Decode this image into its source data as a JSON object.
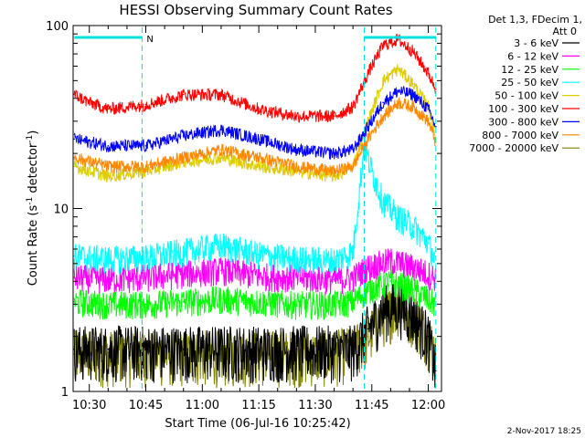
{
  "chart_data": {
    "type": "line",
    "title": "HESSI Observing Summary Count Rates",
    "xlabel": "Start Time (06-Jul-16 10:25:42)",
    "ylabel": "Count Rate (s",
    "ylabel_sup": "-1",
    "ylabel_rest": " detector",
    "ylabel_close": ")",
    "y_scale": "log",
    "ylim": [
      1,
      100
    ],
    "xlim": [
      "10:25:42",
      "12:03:30"
    ],
    "x_ticks": [
      "10:30",
      "10:45",
      "11:00",
      "11:15",
      "11:30",
      "11:45",
      "12:00"
    ],
    "y_ticks": [
      "1",
      "10",
      "100"
    ],
    "legend_title_line1": "Det 1,3, FDecim 1,",
    "legend_title_line2": "Att 0",
    "legend_position": "right",
    "footer_date": "2-Nov-2017 18:25",
    "attenuator_marker": "N",
    "series": [
      {
        "name": "3 - 6 keV",
        "color": "#000000",
        "x": [
          "10:26",
          "10:35",
          "10:45",
          "10:55",
          "11:05",
          "11:15",
          "11:25",
          "11:35",
          "11:40",
          "11:44",
          "11:48",
          "11:52",
          "11:56",
          "12:00",
          "12:02"
        ],
        "y": [
          1.7,
          1.7,
          1.7,
          1.7,
          1.7,
          1.7,
          1.7,
          1.7,
          1.7,
          2.2,
          2.8,
          3.0,
          2.6,
          2.0,
          1.3
        ]
      },
      {
        "name": "6 - 12 keV",
        "color": "#ff00ff",
        "x": [
          "10:26",
          "10:35",
          "10:45",
          "10:55",
          "11:05",
          "11:15",
          "11:25",
          "11:35",
          "11:40",
          "11:44",
          "11:50",
          "11:56",
          "12:02"
        ],
        "y": [
          4.2,
          4.1,
          4.2,
          4.4,
          4.6,
          4.3,
          4.2,
          4.1,
          4.2,
          4.8,
          5.2,
          4.8,
          4.2
        ]
      },
      {
        "name": "12 - 25 keV",
        "color": "#00ff00",
        "x": [
          "10:26",
          "10:35",
          "10:45",
          "10:55",
          "11:05",
          "11:15",
          "11:25",
          "11:35",
          "11:40",
          "11:44",
          "11:50",
          "11:56",
          "12:02"
        ],
        "y": [
          3.1,
          3.0,
          3.0,
          3.1,
          3.2,
          3.1,
          3.0,
          3.0,
          3.1,
          3.6,
          4.0,
          3.6,
          3.0
        ]
      },
      {
        "name": "25 - 50 keV",
        "color": "#00ffff",
        "x": [
          "10:26",
          "10:35",
          "10:45",
          "10:55",
          "11:05",
          "11:15",
          "11:25",
          "11:35",
          "11:40",
          "11:43",
          "11:45",
          "11:48",
          "11:52",
          "11:56",
          "12:00",
          "12:02"
        ],
        "y": [
          5.5,
          5.3,
          5.4,
          5.8,
          6.3,
          5.6,
          5.3,
          5.2,
          5.8,
          22,
          16,
          11,
          9,
          8,
          6.5,
          5
        ]
      },
      {
        "name": "50 - 100 keV",
        "color": "#ddcc00",
        "x": [
          "10:26",
          "10:35",
          "10:45",
          "10:55",
          "11:05",
          "11:15",
          "11:25",
          "11:35",
          "11:40",
          "11:44",
          "11:48",
          "11:52",
          "11:56",
          "12:00",
          "12:02"
        ],
        "y": [
          17,
          15,
          16,
          18,
          19,
          17,
          16,
          15,
          17,
          30,
          50,
          58,
          48,
          36,
          24
        ]
      },
      {
        "name": "100 - 300 keV",
        "color": "#ff0000",
        "x": [
          "10:26",
          "10:30",
          "10:35",
          "10:45",
          "10:55",
          "11:05",
          "11:15",
          "11:25",
          "11:35",
          "11:40",
          "11:44",
          "11:48",
          "11:52",
          "11:56",
          "12:00",
          "12:02"
        ],
        "y": [
          42,
          38,
          35,
          37,
          42,
          42,
          35,
          32,
          32,
          36,
          55,
          78,
          84,
          72,
          55,
          45
        ]
      },
      {
        "name": "300 - 800 keV",
        "color": "#0000ff",
        "x": [
          "10:26",
          "10:35",
          "10:45",
          "10:55",
          "11:05",
          "11:15",
          "11:25",
          "11:35",
          "11:40",
          "11:44",
          "11:48",
          "11:52",
          "11:56",
          "12:00",
          "12:02"
        ],
        "y": [
          24,
          22,
          22,
          25,
          27,
          24,
          21,
          20,
          21,
          28,
          38,
          44,
          42,
          35,
          28
        ]
      },
      {
        "name": "800 - 7000 keV",
        "color": "#ff8800",
        "x": [
          "10:26",
          "10:35",
          "10:45",
          "10:55",
          "11:05",
          "11:15",
          "11:25",
          "11:35",
          "11:40",
          "11:44",
          "11:48",
          "11:52",
          "11:56",
          "12:00",
          "12:02"
        ],
        "y": [
          19,
          17,
          17,
          19,
          21,
          19,
          17,
          16,
          17,
          24,
          32,
          38,
          36,
          30,
          23
        ]
      },
      {
        "name": "7000 - 20000 keV",
        "color": "#808000",
        "x": [
          "10:26",
          "10:35",
          "10:45",
          "10:55",
          "11:05",
          "11:15",
          "11:25",
          "11:35",
          "11:40",
          "11:44",
          "11:48",
          "11:52",
          "11:56",
          "12:00",
          "12:02"
        ],
        "y": [
          1.6,
          1.6,
          1.6,
          1.6,
          1.6,
          1.6,
          1.6,
          1.6,
          1.7,
          2.0,
          2.6,
          3.0,
          2.6,
          2.0,
          1.6
        ]
      }
    ]
  }
}
